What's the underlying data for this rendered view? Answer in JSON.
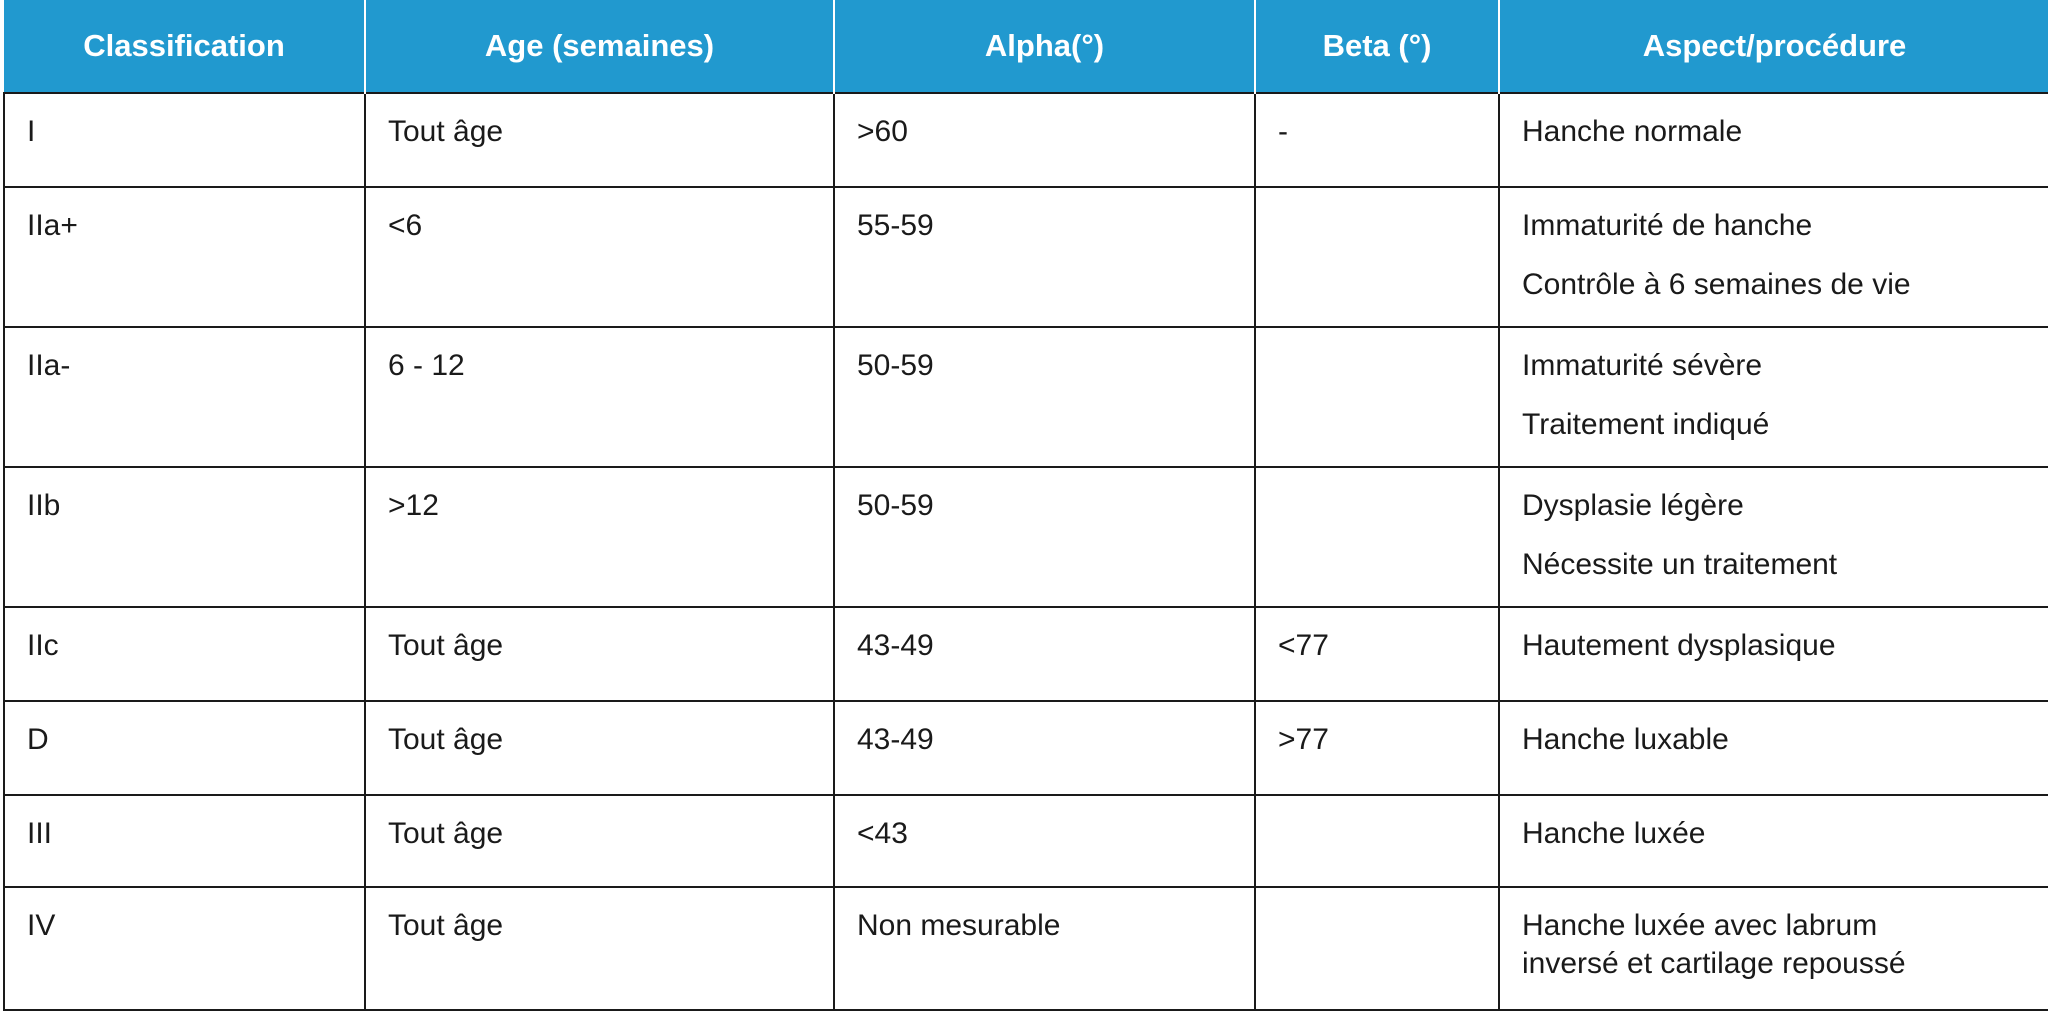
{
  "table": {
    "header": [
      "Classification",
      "Age (semaines)",
      "Alpha(°)",
      "Beta (°)",
      "Aspect/procédure"
    ],
    "rows": [
      [
        "I",
        "Tout âge",
        ">60",
        "-",
        [
          "Hanche normale"
        ]
      ],
      [
        "IIa+",
        "<6",
        "55-59",
        null,
        [
          "Immaturité de hanche",
          "Contrôle à 6 semaines de vie"
        ]
      ],
      [
        "IIa-",
        "6 - 12",
        "50-59",
        null,
        [
          "Immaturité sévère",
          "Traitement indiqué"
        ]
      ],
      [
        "IIb",
        ">12",
        "50-59",
        null,
        [
          "Dysplasie légère",
          "Nécessite un traitement"
        ]
      ],
      [
        "IIc",
        "Tout âge",
        "43-49",
        "<77",
        [
          "Hautement dysplasique"
        ]
      ],
      [
        "D",
        "Tout âge",
        "43-49",
        ">77",
        [
          "Hanche luxable"
        ]
      ],
      [
        "III",
        "Tout âge",
        "<43",
        null,
        [
          "Hanche luxée"
        ]
      ],
      [
        "IV",
        "Tout âge",
        "Non mesurable",
        null,
        [
          "Hanche luxée avec labrum",
          "inversé et cartilage repoussé"
        ]
      ]
    ]
  }
}
